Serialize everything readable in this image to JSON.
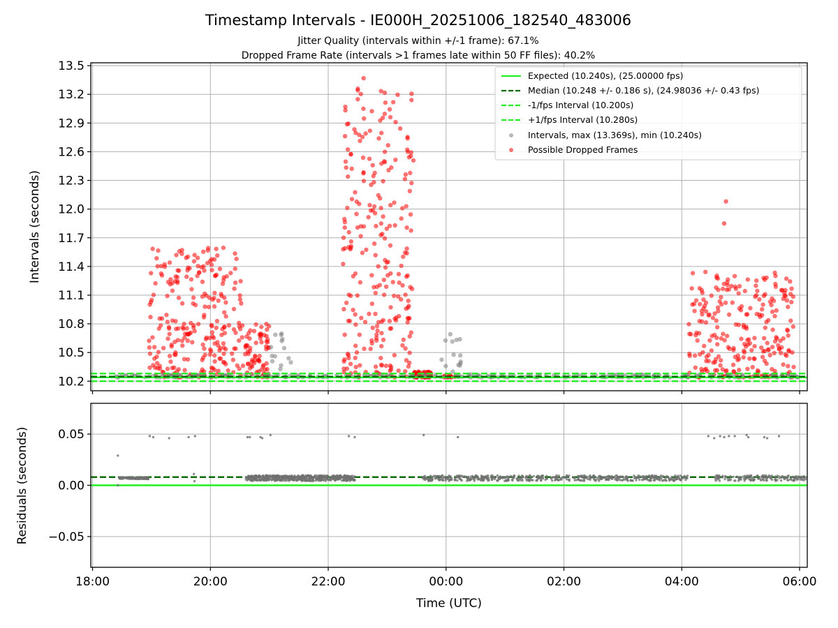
{
  "chart_data": [
    {
      "type": "scatter",
      "title": "Timestamp Intervals - IE000H_20251006_182540_483006",
      "subtitle_1": "Jitter Quality (intervals within +/-1 frame): 67.1%",
      "subtitle_2": "Dropped Frame Rate (intervals >1 frames late within 50 FF files): 40.2%",
      "ylabel": "Intervals (seconds)",
      "xlabel": "",
      "ylim": [
        10.1,
        13.53
      ],
      "y_ticks": [
        10.2,
        10.5,
        10.8,
        11.1,
        11.4,
        11.7,
        12.0,
        12.3,
        12.6,
        12.9,
        13.2,
        13.5
      ],
      "y_tick_labels": [
        "10.2",
        "10.5",
        "10.8",
        "11.1",
        "11.4",
        "11.7",
        "12.0",
        "12.3",
        "12.6",
        "12.9",
        "13.2",
        "13.5"
      ],
      "grid": true,
      "legend_position": "top-right",
      "reference_lines": [
        {
          "name": "Expected (10.240s), (25.00000 fps)",
          "y": 10.24,
          "color": "#22ee22",
          "style": "solid"
        },
        {
          "name": "Median (10.248 +/- 0.186 s), (24.98036 +/- 0.43 fps)",
          "y": 10.248,
          "color": "#0b6b0b",
          "style": "dashed"
        },
        {
          "name": "-1/fps Interval (10.200s)",
          "y": 10.2,
          "color": "#22ee22",
          "style": "dashed"
        },
        {
          "name": "+1/fps Interval (10.280s)",
          "y": 10.28,
          "color": "#22ee22",
          "style": "dashed"
        }
      ],
      "series": [
        {
          "name": "Intervals, max (13.369s), min (10.240s)",
          "color": "#808080",
          "marker": "circle"
        },
        {
          "name": "Possible Dropped Frames",
          "color": "#ff0000",
          "marker": "circle"
        }
      ],
      "observed_range": {
        "min": 10.24,
        "max": 13.369
      },
      "clusters": [
        {
          "series": "Possible Dropped Frames",
          "x_range_hours": [
            18.95,
            20.55
          ],
          "y_range": [
            10.24,
            11.6
          ],
          "density": "dense"
        },
        {
          "series": "Possible Dropped Frames",
          "x_range_hours": [
            20.55,
            21.0
          ],
          "y_range": [
            10.24,
            10.8
          ],
          "density": "medium"
        },
        {
          "series": "Possible Dropped Frames",
          "x_range_hours": [
            22.25,
            23.45
          ],
          "y_range": [
            10.24,
            13.369
          ],
          "density": "dense"
        },
        {
          "series": "Possible Dropped Frames",
          "x_range_hours": [
            23.45,
            23.75
          ],
          "y_range": [
            10.24,
            10.3
          ],
          "density": "medium"
        },
        {
          "series": "Possible Dropped Frames",
          "x_range_hours": [
            23.95,
            24.15
          ],
          "y_range": [
            10.24,
            10.26
          ],
          "density": "sparse"
        },
        {
          "series": "Possible Dropped Frames",
          "x_range_hours": [
            28.1,
            29.9
          ],
          "y_range": [
            10.24,
            11.35
          ],
          "density": "dense"
        },
        {
          "series": "Intervals, max (13.369s), min (10.240s)",
          "x_range_hours": [
            18.4,
            30.1
          ],
          "y_range": [
            10.24,
            10.27
          ],
          "density": "dense"
        },
        {
          "series": "Intervals, max (13.369s), min (10.240s)",
          "x_range_hours": [
            21.0,
            21.4
          ],
          "y_range": [
            10.3,
            10.7
          ],
          "density": "sparse"
        },
        {
          "series": "Intervals, max (13.369s), min (10.240s)",
          "x_range_hours": [
            23.9,
            24.25
          ],
          "y_range": [
            10.3,
            10.72
          ],
          "density": "sparse"
        }
      ],
      "outliers": [
        {
          "series": "Possible Dropped Frames",
          "x_hours": 22.6,
          "y": 13.369
        },
        {
          "series": "Possible Dropped Frames",
          "x_hours": 28.75,
          "y": 12.08
        },
        {
          "series": "Possible Dropped Frames",
          "x_hours": 28.72,
          "y": 11.85
        }
      ]
    },
    {
      "type": "scatter",
      "title": "",
      "xlabel": "Time (UTC)",
      "ylabel": "Residuals (seconds)",
      "ylim": [
        -0.08,
        0.08
      ],
      "y_ticks": [
        -0.05,
        0.0,
        0.05
      ],
      "y_tick_labels": [
        "−0.05",
        "0.00",
        "0.05"
      ],
      "xlim_hours": [
        17.97,
        30.13
      ],
      "x_ticks_hours": [
        18,
        20,
        22,
        24,
        26,
        28,
        30
      ],
      "x_tick_labels": [
        "18:00",
        "20:00",
        "22:00",
        "00:00",
        "02:00",
        "04:00",
        "06:00"
      ],
      "grid": true,
      "reference_lines": [
        {
          "y": 0.0,
          "color": "#22ee22",
          "style": "solid"
        },
        {
          "y": 0.008,
          "color": "#0b6b0b",
          "style": "dashed"
        }
      ],
      "series": [
        {
          "name": "Residuals",
          "color": "#707070",
          "marker": "circle"
        }
      ],
      "clusters": [
        {
          "x_range_hours": [
            18.45,
            18.95
          ],
          "y_range": [
            0.006,
            0.008
          ],
          "density": "medium"
        },
        {
          "x_range_hours": [
            20.6,
            22.45
          ],
          "y_range": [
            0.004,
            0.01
          ],
          "density": "dense"
        },
        {
          "x_range_hours": [
            23.6,
            28.1
          ],
          "y_range": [
            0.004,
            0.01
          ],
          "density": "dense"
        },
        {
          "x_range_hours": [
            28.55,
            30.13
          ],
          "y_range": [
            0.004,
            0.01
          ],
          "density": "medium"
        }
      ],
      "outliers": [
        {
          "x_hours": 18.43,
          "y": 0.029
        },
        {
          "x_hours": 18.43,
          "y": 0.0
        },
        {
          "x_hours": 18.97,
          "y": 0.048
        },
        {
          "x_hours": 19.03,
          "y": 0.047
        },
        {
          "x_hours": 19.3,
          "y": 0.046
        },
        {
          "x_hours": 19.63,
          "y": 0.047
        },
        {
          "x_hours": 19.74,
          "y": 0.048
        },
        {
          "x_hours": 19.72,
          "y": 0.011
        },
        {
          "x_hours": 19.73,
          "y": 0.004
        },
        {
          "x_hours": 20.63,
          "y": 0.047
        },
        {
          "x_hours": 20.67,
          "y": 0.047
        },
        {
          "x_hours": 20.85,
          "y": 0.047
        },
        {
          "x_hours": 20.88,
          "y": 0.046
        },
        {
          "x_hours": 21.02,
          "y": 0.049
        },
        {
          "x_hours": 22.35,
          "y": 0.048
        },
        {
          "x_hours": 22.45,
          "y": 0.047
        },
        {
          "x_hours": 23.62,
          "y": 0.049
        },
        {
          "x_hours": 24.2,
          "y": 0.047
        },
        {
          "x_hours": 28.45,
          "y": 0.048
        },
        {
          "x_hours": 28.55,
          "y": 0.046
        },
        {
          "x_hours": 28.65,
          "y": 0.048
        },
        {
          "x_hours": 28.72,
          "y": 0.047
        },
        {
          "x_hours": 28.8,
          "y": 0.048
        },
        {
          "x_hours": 28.9,
          "y": 0.048
        },
        {
          "x_hours": 29.1,
          "y": 0.049
        },
        {
          "x_hours": 29.13,
          "y": 0.047
        },
        {
          "x_hours": 29.4,
          "y": 0.047
        },
        {
          "x_hours": 29.45,
          "y": 0.046
        },
        {
          "x_hours": 29.65,
          "y": 0.048
        }
      ]
    }
  ]
}
